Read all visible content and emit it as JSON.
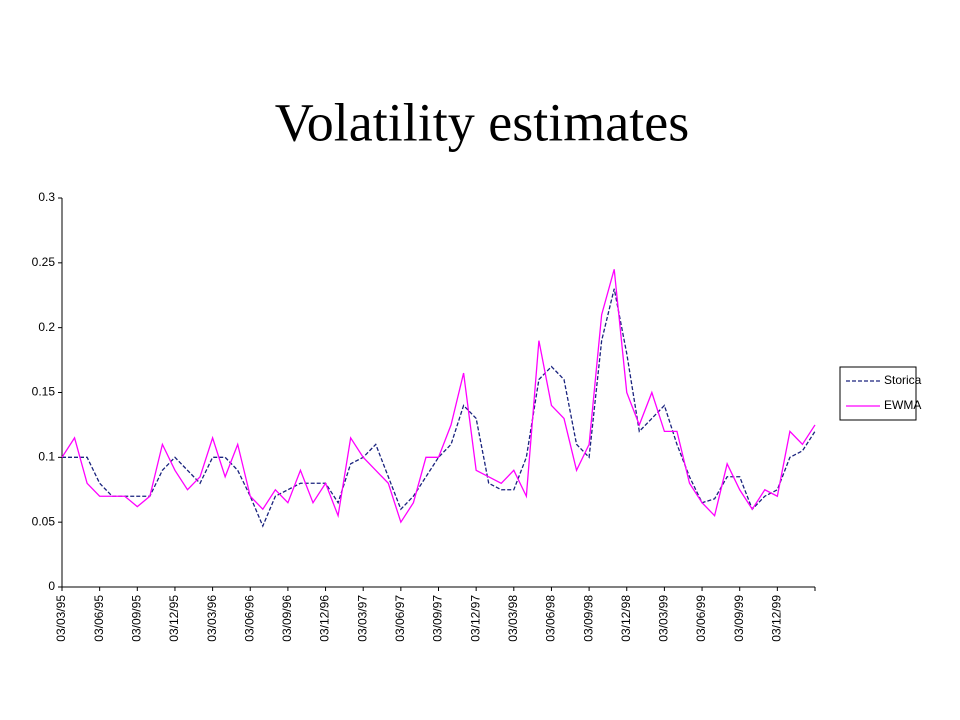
{
  "chart_data": {
    "type": "line",
    "title": "Volatility estimates",
    "categories": [
      "03/03/95",
      null,
      null,
      "03/06/95",
      null,
      null,
      "03/09/95",
      null,
      null,
      "03/12/95",
      null,
      null,
      "03/03/96",
      null,
      null,
      "03/06/96",
      null,
      null,
      "03/09/96",
      null,
      null,
      "03/12/96",
      null,
      null,
      "03/03/97",
      null,
      null,
      "03/06/97",
      null,
      null,
      "03/09/97",
      null,
      null,
      "03/12/97",
      null,
      null,
      "03/03/98",
      null,
      null,
      "03/06/98",
      null,
      null,
      "03/09/98",
      null,
      null,
      "03/12/98",
      null,
      null,
      "03/03/99",
      null,
      null,
      "03/06/99",
      null,
      null,
      "03/09/99",
      null,
      null,
      "03/12/99",
      null,
      null,
      null
    ],
    "series": [
      {
        "name": "Storica",
        "color": "#1a237e",
        "dashed": true,
        "values": [
          0.1,
          0.1,
          0.1,
          0.08,
          0.07,
          0.07,
          0.07,
          0.07,
          0.09,
          0.1,
          0.09,
          0.08,
          0.1,
          0.1,
          0.09,
          0.07,
          0.047,
          0.07,
          0.075,
          0.08,
          0.08,
          0.08,
          0.065,
          0.095,
          0.1,
          0.11,
          0.085,
          0.06,
          0.07,
          0.085,
          0.1,
          0.11,
          0.14,
          0.13,
          0.08,
          0.075,
          0.075,
          0.1,
          0.16,
          0.17,
          0.16,
          0.11,
          0.1,
          0.19,
          0.23,
          0.18,
          0.12,
          0.13,
          0.14,
          0.11,
          0.085,
          0.065,
          0.068,
          0.085,
          0.085,
          0.06,
          0.07,
          0.075,
          0.1,
          0.105,
          0.12
        ]
      },
      {
        "name": "EWMA",
        "color": "#ff00ff",
        "dashed": false,
        "values": [
          0.1,
          0.115,
          0.08,
          0.07,
          0.07,
          0.07,
          0.062,
          0.07,
          0.11,
          0.09,
          0.075,
          0.085,
          0.115,
          0.085,
          0.11,
          0.07,
          0.06,
          0.075,
          0.065,
          0.09,
          0.065,
          0.08,
          0.055,
          0.115,
          0.1,
          0.09,
          0.08,
          0.05,
          0.065,
          0.1,
          0.1,
          0.125,
          0.165,
          0.09,
          0.085,
          0.08,
          0.09,
          0.07,
          0.19,
          0.14,
          0.13,
          0.09,
          0.11,
          0.21,
          0.245,
          0.15,
          0.125,
          0.15,
          0.12,
          0.12,
          0.08,
          0.065,
          0.055,
          0.095,
          0.075,
          0.06,
          0.075,
          0.07,
          0.12,
          0.11,
          0.125
        ]
      }
    ],
    "ylim": [
      0,
      0.3
    ],
    "yticks": [
      0,
      0.05,
      0.1,
      0.15,
      0.2,
      0.25,
      0.3
    ],
    "grid": false,
    "legend": "right"
  }
}
